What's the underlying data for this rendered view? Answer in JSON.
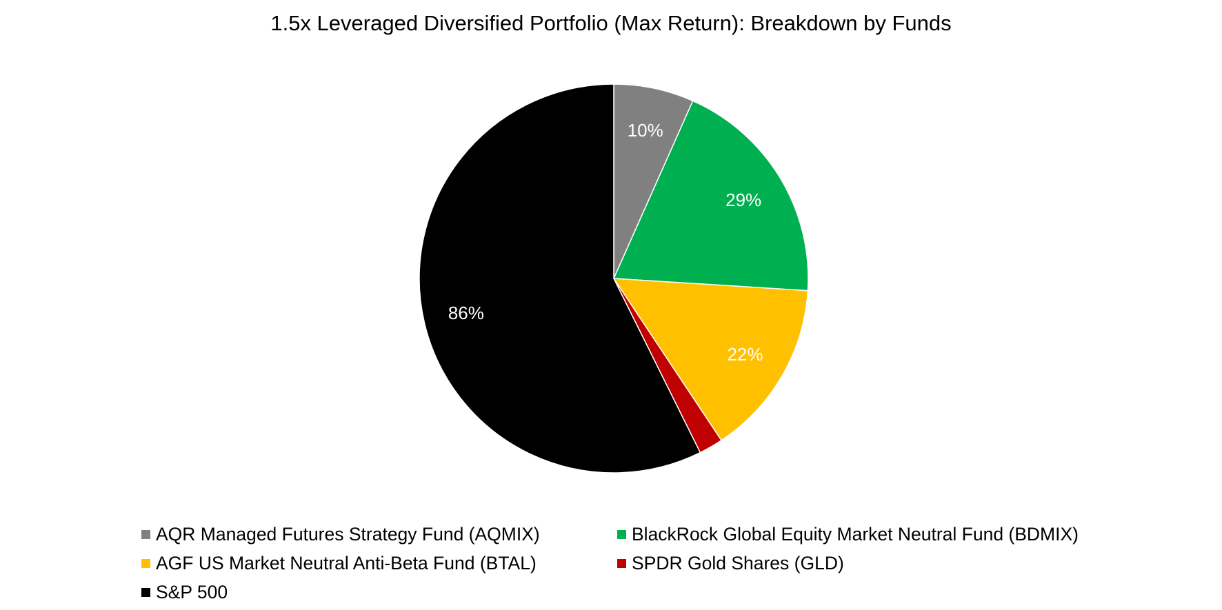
{
  "chart_data": {
    "type": "pie",
    "title": "1.5x Leveraged Diversified Portfolio (Max Return): Breakdown by Funds",
    "series": [
      {
        "name": "AQR Managed Futures Strategy Fund (AQMIX)",
        "value": 10,
        "label": "10%",
        "color": "#808080"
      },
      {
        "name": "BlackRock Global Equity Market Neutral Fund (BDMIX)",
        "value": 29,
        "label": "29%",
        "color": "#00B050"
      },
      {
        "name": "AGF US Market Neutral Anti-Beta Fund (BTAL)",
        "value": 22,
        "label": "22%",
        "color": "#FFC000"
      },
      {
        "name": "SPDR Gold Shares (GLD)",
        "value": 3,
        "label": "",
        "color": "#C00000"
      },
      {
        "name": "S&P 500",
        "value": 86,
        "label": "86%",
        "color": "#000000"
      }
    ],
    "legend_position": "bottom",
    "start_angle": "12 o'clock",
    "direction": "clockwise",
    "data_label_color": "#FFFFFF"
  }
}
